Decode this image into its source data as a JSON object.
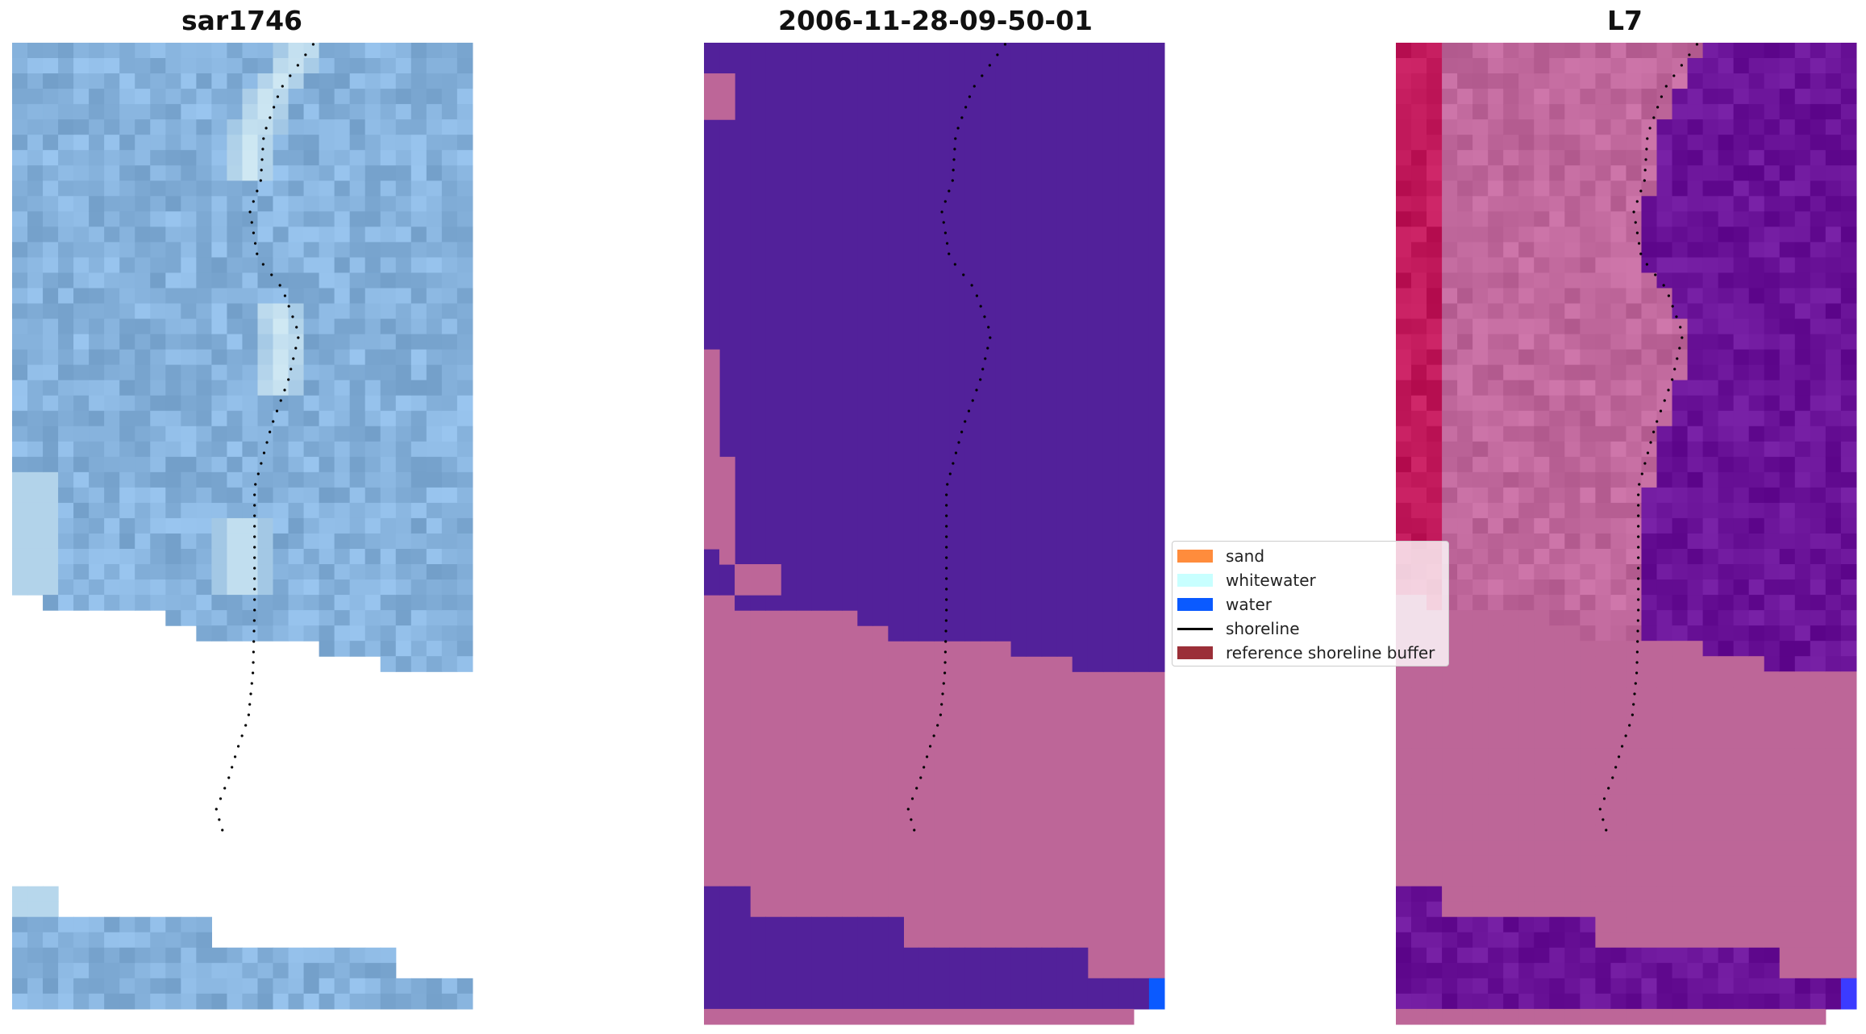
{
  "panels": [
    {
      "id": "sar",
      "title": "sar1746"
    },
    {
      "id": "classified",
      "title": "2006-11-28-09-50-01"
    },
    {
      "id": "ndwi",
      "title": "L7"
    }
  ],
  "legend": {
    "items": [
      {
        "label": "sand",
        "kind": "patch",
        "color": "#ff8c3c"
      },
      {
        "label": "whitewater",
        "kind": "patch",
        "color": "#c8ffff"
      },
      {
        "label": "water",
        "kind": "patch",
        "color": "#0a5aff"
      },
      {
        "label": "shoreline",
        "kind": "line",
        "color": "#000000"
      },
      {
        "label": "reference shoreline buffer",
        "kind": "patch",
        "color": "#9b2f38"
      }
    ]
  },
  "colors": {
    "sar_base": "#86b2dc",
    "sar_bright": "#e8fbfb",
    "class_background": "#52219a",
    "class_buffer": "#bd6698",
    "class_water": "#0a5aff",
    "ndwi_land": "#c0185a",
    "ndwi_mid": "#c0689c",
    "ndwi_water": "#6a1398",
    "shoreline": "#000000"
  }
}
